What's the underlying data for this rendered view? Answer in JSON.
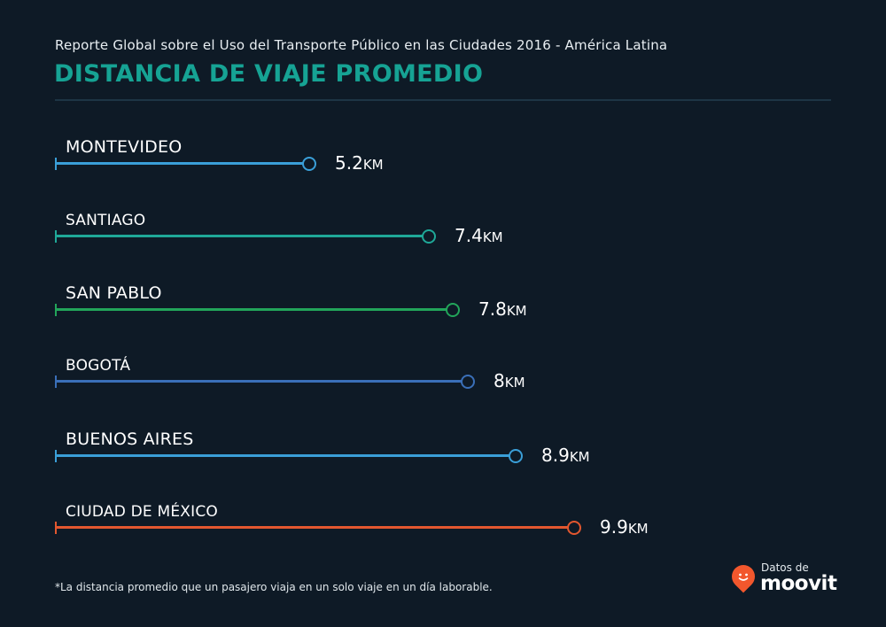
{
  "header": {
    "subtitle": "Reporte Global sobre el Uso del Transporte Público en las Ciudades 2016 - América Latina",
    "title": "DISTANCIA DE VIAJE PROMEDIO"
  },
  "rows": [
    {
      "city": "MONTEVIDEO",
      "value": "5.2",
      "unit": "KM",
      "color": "#3a9fd8"
    },
    {
      "city": "SANTIAGO",
      "value": "7.4",
      "unit": "KM",
      "color": "#1fa898"
    },
    {
      "city": "SAN PABLO",
      "value": "7.8",
      "unit": "KM",
      "color": "#22a55a"
    },
    {
      "city": "BOGOTÁ",
      "value": "8",
      "unit": "KM",
      "color": "#3a6fb8"
    },
    {
      "city": "BUENOS AIRES",
      "value": "8.9",
      "unit": "KM",
      "color": "#3a9fd8"
    },
    {
      "city": "CIUDAD DE MÉXICO",
      "value": "9.9",
      "unit": "KM",
      "color": "#e2572f"
    }
  ],
  "footnote": "*La distancia promedio que un pasajero viaja en un solo viaje en un día laborable.",
  "brand": {
    "prefix": "Datos de",
    "name": "moovit",
    "color": "#f2572d"
  },
  "chart_data": {
    "type": "bar",
    "orientation": "horizontal",
    "title": "DISTANCIA DE VIAJE PROMEDIO",
    "subtitle": "Reporte Global sobre el Uso del Transporte Público en las Ciudades 2016 - América Latina",
    "categories": [
      "MONTEVIDEO",
      "SANTIAGO",
      "SAN PABLO",
      "BOGOTÁ",
      "BUENOS AIRES",
      "CIUDAD DE MÉXICO"
    ],
    "values": [
      5.2,
      7.4,
      7.8,
      8,
      8.9,
      9.9
    ],
    "unit": "km",
    "colors": [
      "#3a9fd8",
      "#1fa898",
      "#22a55a",
      "#3a6fb8",
      "#3a9fd8",
      "#e2572f"
    ],
    "xlabel": "",
    "ylabel": "",
    "grid": false,
    "legend": "none",
    "annotation": "*La distancia promedio que un pasajero viaja en un solo viaje en un día laborable."
  }
}
